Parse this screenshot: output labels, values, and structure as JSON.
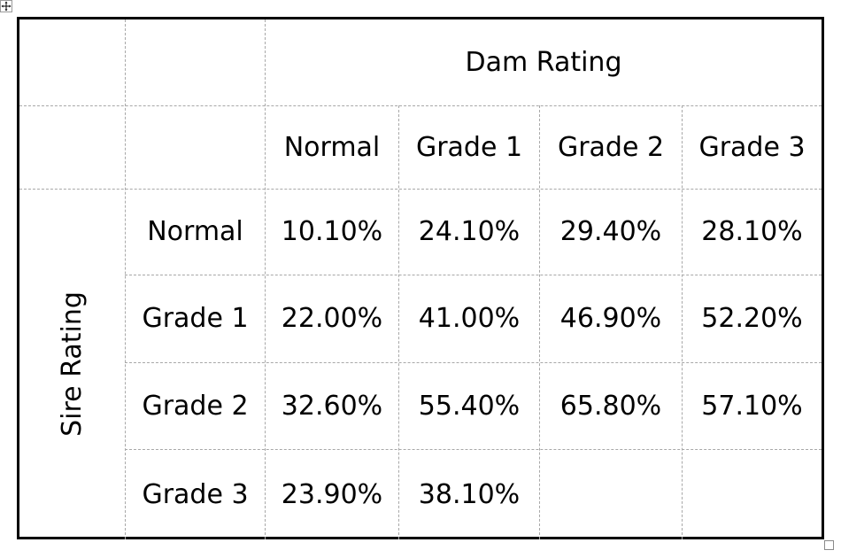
{
  "table": {
    "dam_header": "Dam Rating",
    "sire_header": "Sire Rating",
    "columns": [
      "Normal",
      "Grade 1",
      "Grade 2",
      "Grade 3"
    ],
    "rows": [
      {
        "label": "Normal",
        "cells": [
          "10.10%",
          "24.10%",
          "29.40%",
          "28.10%"
        ]
      },
      {
        "label": "Grade 1",
        "cells": [
          "22.00%",
          "41.00%",
          "46.90%",
          "52.20%"
        ]
      },
      {
        "label": "Grade 2",
        "cells": [
          "32.60%",
          "55.40%",
          "65.80%",
          "57.10%"
        ]
      },
      {
        "label": "Grade 3",
        "cells": [
          "23.90%",
          "38.10%",
          "",
          ""
        ]
      }
    ]
  },
  "icons": {
    "move_handle": "move-cross-icon",
    "resize_handle": "resize-square-icon"
  }
}
